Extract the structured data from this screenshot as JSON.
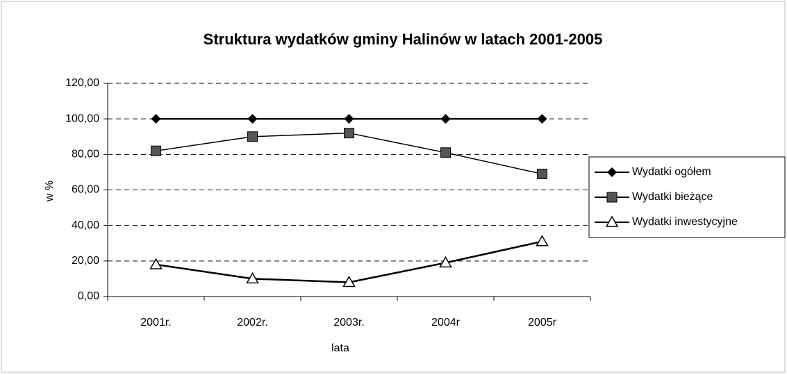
{
  "chart_data": {
    "type": "line",
    "title": "Struktura wydatków gminy Halinów w latach 2001-2005",
    "x_label": "lata",
    "y_label": "w %",
    "categories": [
      "2001r.",
      "2002r.",
      "2003r.",
      "2004r",
      "2005r"
    ],
    "series": [
      {
        "name": "Wydatki ogółem",
        "color": "#000000",
        "marker": "diamond",
        "values": [
          100,
          100,
          100,
          100,
          100
        ]
      },
      {
        "name": "Wydatki bieżące",
        "color": "#000000",
        "marker": "square",
        "values": [
          82,
          90,
          92,
          81,
          69
        ]
      },
      {
        "name": "Wydatki inwestycyjne",
        "color": "#000000",
        "marker": "triangle",
        "values": [
          18,
          10,
          8,
          19,
          31
        ]
      }
    ],
    "ylim": [
      0,
      120
    ],
    "yticks": [
      {
        "value": 0,
        "label": "0,00"
      },
      {
        "value": 20,
        "label": "20,00"
      },
      {
        "value": 40,
        "label": "40,00"
      },
      {
        "value": 60,
        "label": "60,00"
      },
      {
        "value": 80,
        "label": "80,00"
      },
      {
        "value": 100,
        "label": "100,00"
      },
      {
        "value": 120,
        "label": "120,00"
      }
    ],
    "grid": true,
    "legend": "right"
  }
}
